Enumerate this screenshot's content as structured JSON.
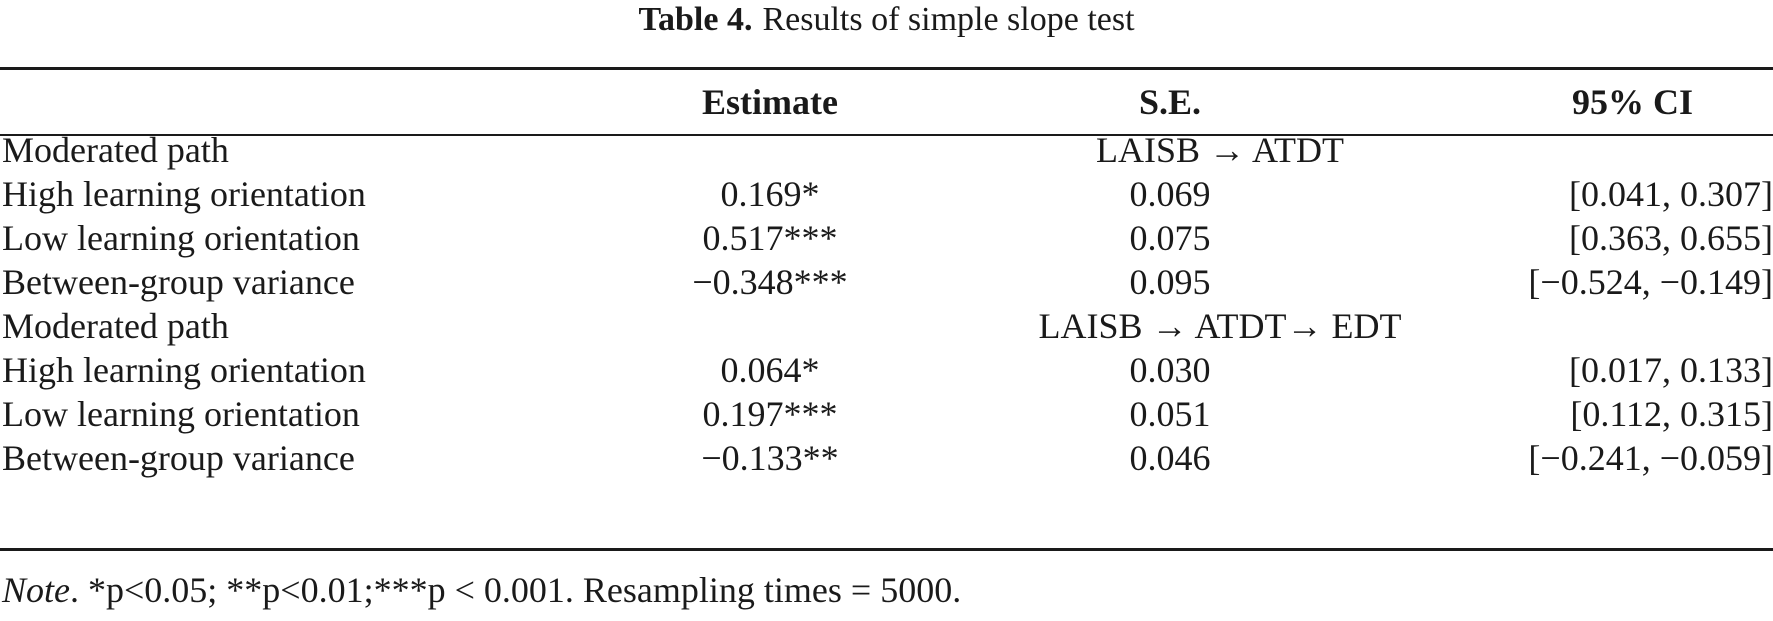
{
  "caption": {
    "label": "Table 4.",
    "title": "Results of simple slope test"
  },
  "headers": [
    "",
    "Estimate",
    "S.E.",
    "95% CI"
  ],
  "sections": [
    {
      "label": "Moderated path",
      "path": "LAISB → ATDT",
      "rows": [
        {
          "name": "High learning orientation",
          "estimate": "0.169*",
          "se": "0.069",
          "ci": "[0.041, 0.307]"
        },
        {
          "name": "Low learning orientation",
          "estimate": "0.517***",
          "se": "0.075",
          "ci": "[0.363, 0.655]"
        },
        {
          "name": "Between-group variance",
          "estimate": "−0.348***",
          "se": "0.095",
          "ci": "[−0.524, −0.149]"
        }
      ]
    },
    {
      "label": "Moderated path",
      "path": "LAISB → ATDT→ EDT",
      "rows": [
        {
          "name": "High learning orientation",
          "estimate": "0.064*",
          "se": "0.030",
          "ci": "[0.017, 0.133]"
        },
        {
          "name": "Low learning orientation",
          "estimate": "0.197***",
          "se": "0.051",
          "ci": "[0.112, 0.315]"
        },
        {
          "name": "Between-group variance",
          "estimate": "−0.133**",
          "se": "0.046",
          "ci": "[−0.241, −0.059]"
        }
      ]
    }
  ],
  "note": {
    "label": "Note",
    "text": ". *p<0.05; **p<0.01;***p < 0.001. Resampling times = 5000."
  }
}
